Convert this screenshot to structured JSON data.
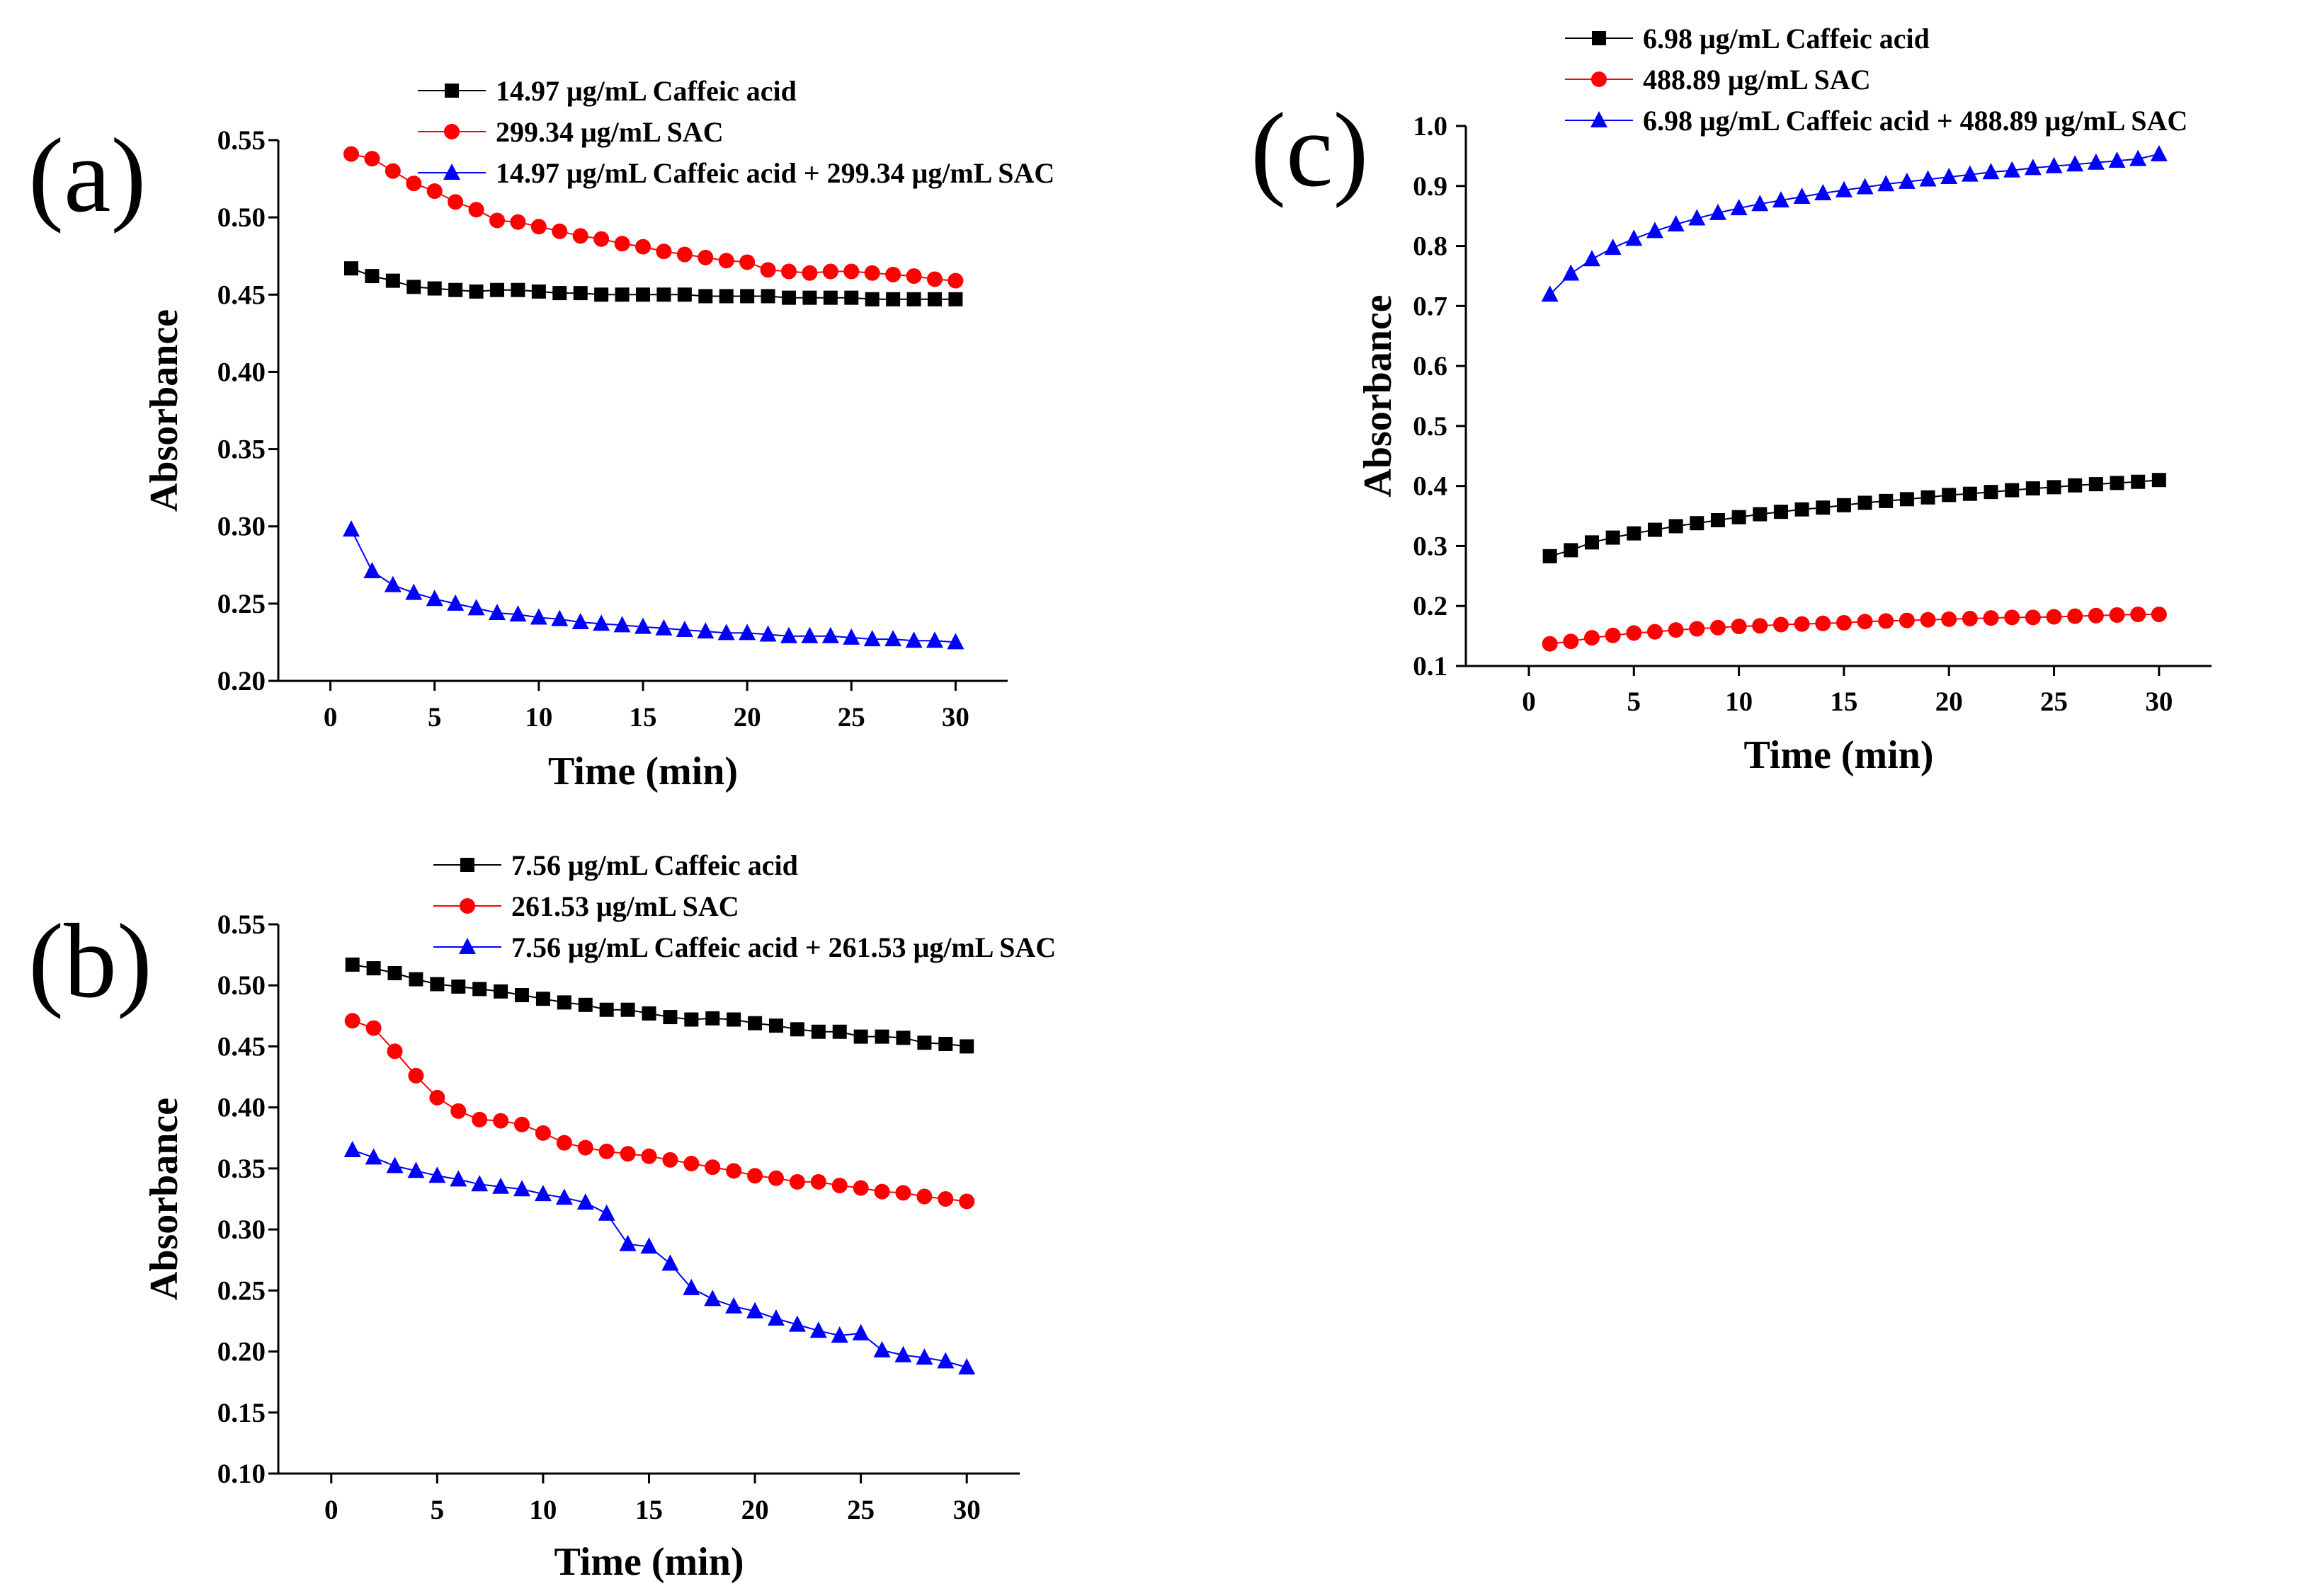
{
  "chart_data": [
    {
      "panel_label": "(a)",
      "type": "line",
      "xlabel": "Time (min)",
      "ylabel": "Absorbance",
      "xlim": [
        -2.5,
        32.5
      ],
      "ylim": [
        0.2,
        0.55
      ],
      "xticks": [
        0,
        5,
        10,
        15,
        20,
        25,
        30
      ],
      "yticks": [
        0.2,
        0.25,
        0.3,
        0.35,
        0.4,
        0.45,
        0.5,
        0.55
      ],
      "ytick_labels": [
        "0.20",
        "0.25",
        "0.30",
        "0.35",
        "0.40",
        "0.45",
        "0.50",
        "0.55"
      ],
      "x": [
        1,
        2,
        3,
        4,
        5,
        6,
        7,
        8,
        9,
        10,
        11,
        12,
        13,
        14,
        15,
        16,
        17,
        18,
        19,
        20,
        21,
        22,
        23,
        24,
        25,
        26,
        27,
        28,
        29,
        30
      ],
      "legend_position": "top",
      "series": [
        {
          "name": "14.97 μg/mL Caffeic acid",
          "marker": "square",
          "color": "#000000",
          "values": [
            0.467,
            0.462,
            0.459,
            0.455,
            0.454,
            0.453,
            0.452,
            0.453,
            0.453,
            0.452,
            0.451,
            0.451,
            0.45,
            0.45,
            0.45,
            0.45,
            0.45,
            0.449,
            0.449,
            0.449,
            0.449,
            0.448,
            0.448,
            0.448,
            0.448,
            0.447,
            0.447,
            0.447,
            0.447,
            0.447
          ]
        },
        {
          "name": "299.34 μg/mL SAC",
          "marker": "circle",
          "color": "#ff0000",
          "values": [
            0.541,
            0.538,
            0.53,
            0.522,
            0.517,
            0.51,
            0.505,
            0.498,
            0.497,
            0.494,
            0.491,
            0.488,
            0.486,
            0.483,
            0.481,
            0.478,
            0.476,
            0.474,
            0.472,
            0.471,
            0.466,
            0.465,
            0.464,
            0.465,
            0.465,
            0.464,
            0.463,
            0.462,
            0.46,
            0.459
          ]
        },
        {
          "name": "14.97 μg/mL Caffeic acid + 299.34 μg/mL SAC",
          "marker": "triangle",
          "color": "#0000ff",
          "values": [
            0.298,
            0.271,
            0.262,
            0.257,
            0.253,
            0.25,
            0.247,
            0.244,
            0.243,
            0.241,
            0.24,
            0.238,
            0.237,
            0.236,
            0.235,
            0.234,
            0.233,
            0.232,
            0.231,
            0.231,
            0.23,
            0.229,
            0.229,
            0.229,
            0.228,
            0.227,
            0.227,
            0.226,
            0.226,
            0.225
          ]
        }
      ]
    },
    {
      "panel_label": "(b)",
      "type": "line",
      "xlabel": "Time (min)",
      "ylabel": "Absorbance",
      "xlim": [
        -2.5,
        32.5
      ],
      "ylim": [
        0.1,
        0.55
      ],
      "xticks": [
        0,
        5,
        10,
        15,
        20,
        25,
        30
      ],
      "yticks": [
        0.1,
        0.15,
        0.2,
        0.25,
        0.3,
        0.35,
        0.4,
        0.45,
        0.5,
        0.55
      ],
      "ytick_labels": [
        "0.10",
        "0.15",
        "0.20",
        "0.25",
        "0.30",
        "0.35",
        "0.40",
        "0.45",
        "0.50",
        "0.55"
      ],
      "x": [
        1,
        2,
        3,
        4,
        5,
        6,
        7,
        8,
        9,
        10,
        11,
        12,
        13,
        14,
        15,
        16,
        17,
        18,
        19,
        20,
        21,
        22,
        23,
        24,
        25,
        26,
        27,
        28,
        29,
        30
      ],
      "legend_position": "top",
      "series": [
        {
          "name": "7.56 μg/mL Caffeic acid",
          "marker": "square",
          "color": "#000000",
          "values": [
            0.517,
            0.514,
            0.51,
            0.505,
            0.501,
            0.499,
            0.497,
            0.495,
            0.492,
            0.489,
            0.486,
            0.484,
            0.48,
            0.48,
            0.477,
            0.474,
            0.472,
            0.473,
            0.472,
            0.469,
            0.467,
            0.464,
            0.462,
            0.462,
            0.458,
            0.458,
            0.457,
            0.453,
            0.452,
            0.45
          ]
        },
        {
          "name": "261.53 μg/mL SAC",
          "marker": "circle",
          "color": "#ff0000",
          "values": [
            0.471,
            0.465,
            0.446,
            0.426,
            0.408,
            0.397,
            0.39,
            0.389,
            0.386,
            0.379,
            0.371,
            0.367,
            0.364,
            0.362,
            0.36,
            0.357,
            0.354,
            0.351,
            0.348,
            0.344,
            0.342,
            0.339,
            0.339,
            0.336,
            0.334,
            0.331,
            0.33,
            0.327,
            0.325,
            0.323
          ]
        },
        {
          "name": "7.56 μg/mL Caffeic acid + 261.53 μg/mL SAC",
          "marker": "triangle",
          "color": "#0000ff",
          "values": [
            0.365,
            0.359,
            0.352,
            0.348,
            0.344,
            0.341,
            0.337,
            0.335,
            0.333,
            0.329,
            0.326,
            0.322,
            0.313,
            0.288,
            0.286,
            0.272,
            0.252,
            0.243,
            0.237,
            0.233,
            0.227,
            0.222,
            0.217,
            0.213,
            0.215,
            0.201,
            0.197,
            0.195,
            0.192,
            0.187
          ]
        }
      ]
    },
    {
      "panel_label": "(c)",
      "type": "line",
      "xlabel": "Time (min)",
      "ylabel": "Absorbance",
      "xlim": [
        -3,
        32.5
      ],
      "ylim": [
        0.1,
        1.0
      ],
      "xticks": [
        0,
        5,
        10,
        15,
        20,
        25,
        30
      ],
      "yticks": [
        0.1,
        0.2,
        0.3,
        0.4,
        0.5,
        0.6,
        0.7,
        0.8,
        0.9,
        1.0
      ],
      "ytick_labels": [
        "0.1",
        "0.2",
        "0.3",
        "0.4",
        "0.5",
        "0.6",
        "0.7",
        "0.8",
        "0.9",
        "1.0"
      ],
      "x": [
        1,
        2,
        3,
        4,
        5,
        6,
        7,
        8,
        9,
        10,
        11,
        12,
        13,
        14,
        15,
        16,
        17,
        18,
        19,
        20,
        21,
        22,
        23,
        24,
        25,
        26,
        27,
        28,
        29,
        30
      ],
      "legend_position": "top-right",
      "series": [
        {
          "name": "6.98 μg/mL Caffeic acid",
          "marker": "square",
          "color": "#000000",
          "values": [
            0.283,
            0.293,
            0.306,
            0.314,
            0.321,
            0.327,
            0.333,
            0.338,
            0.343,
            0.348,
            0.353,
            0.357,
            0.361,
            0.364,
            0.368,
            0.372,
            0.375,
            0.378,
            0.381,
            0.385,
            0.387,
            0.39,
            0.393,
            0.396,
            0.398,
            0.401,
            0.403,
            0.405,
            0.407,
            0.41
          ]
        },
        {
          "name": "488.89 μg/mL SAC",
          "marker": "circle",
          "color": "#ff0000",
          "values": [
            0.137,
            0.141,
            0.147,
            0.151,
            0.155,
            0.157,
            0.16,
            0.162,
            0.164,
            0.166,
            0.167,
            0.169,
            0.17,
            0.171,
            0.172,
            0.174,
            0.175,
            0.176,
            0.177,
            0.178,
            0.179,
            0.18,
            0.181,
            0.181,
            0.182,
            0.183,
            0.184,
            0.185,
            0.186,
            0.186
          ]
        },
        {
          "name": "6.98 μg/mL Caffeic acid + 488.89 μg/mL SAC",
          "marker": "triangle",
          "color": "#0000ff",
          "values": [
            0.719,
            0.754,
            0.778,
            0.797,
            0.812,
            0.825,
            0.836,
            0.846,
            0.855,
            0.863,
            0.87,
            0.876,
            0.882,
            0.888,
            0.893,
            0.898,
            0.903,
            0.907,
            0.911,
            0.915,
            0.919,
            0.923,
            0.926,
            0.93,
            0.933,
            0.936,
            0.939,
            0.942,
            0.945,
            0.953
          ]
        }
      ]
    }
  ]
}
